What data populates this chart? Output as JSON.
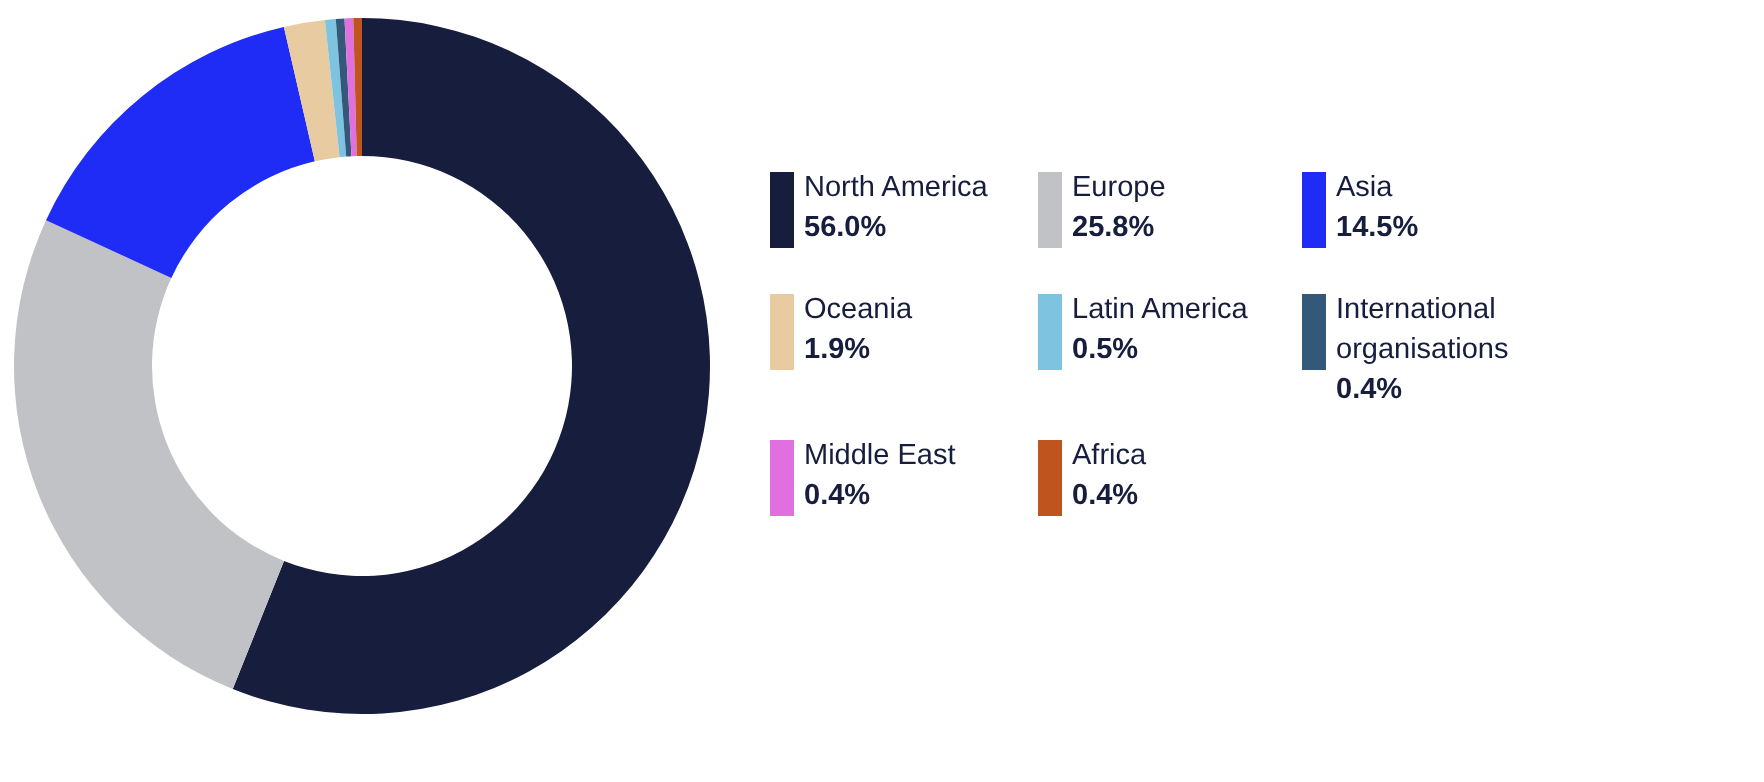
{
  "chart_data": {
    "type": "donut",
    "categories": [
      "North America",
      "Europe",
      "Asia",
      "Oceania",
      "Latin America",
      "International organisations",
      "Middle East",
      "Africa"
    ],
    "values": [
      56.0,
      25.8,
      14.5,
      1.9,
      0.5,
      0.4,
      0.4,
      0.4
    ],
    "colors": [
      "#161d3d",
      "#c0c2c6",
      "#1f2cf5",
      "#e8cba0",
      "#7ec3e0",
      "#34587a",
      "#e070e0",
      "#c0541f"
    ],
    "value_labels": [
      "56.0%",
      "25.8%",
      "14.5%",
      "1.9%",
      "0.5%",
      "0.4%",
      "0.4%",
      "0.4%"
    ],
    "legend": "right"
  }
}
